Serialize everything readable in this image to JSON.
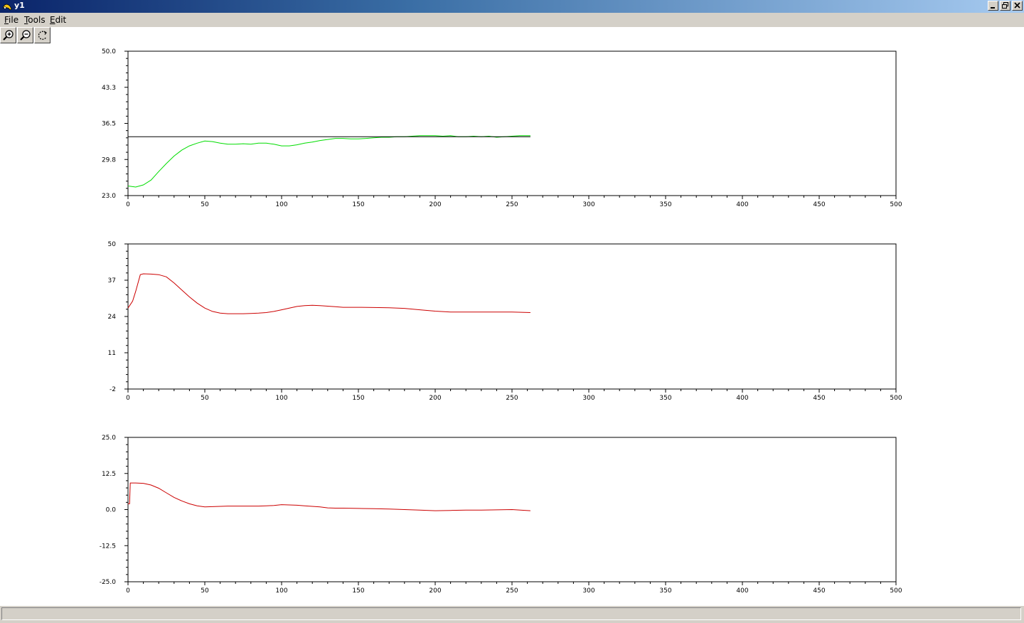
{
  "window": {
    "title": "y1"
  },
  "menu": {
    "items": [
      {
        "label": "File",
        "accel": "F",
        "rest": "ile"
      },
      {
        "label": "Tools",
        "accel": "T",
        "rest": "ools"
      },
      {
        "label": "Edit",
        "accel": "E",
        "rest": "dit"
      }
    ]
  },
  "toolbar": {
    "icons": [
      "zoom-in-icon",
      "zoom-out-icon",
      "rotate-icon"
    ]
  },
  "status": {
    "text": ""
  },
  "chart_data": [
    {
      "type": "line",
      "xlim": [
        0,
        500
      ],
      "ylim": [
        23.0,
        50.0
      ],
      "xticks": [
        "0",
        "50",
        "100",
        "150",
        "200",
        "250",
        "300",
        "350",
        "400",
        "450",
        "500"
      ],
      "yticks": [
        "23.0",
        "29.8",
        "36.5",
        "43.3",
        "50.0"
      ],
      "series": [
        {
          "color": "#00dd00",
          "x": [
            0,
            5,
            10,
            15,
            20,
            25,
            30,
            35,
            40,
            45,
            50,
            55,
            60,
            65,
            70,
            75,
            80,
            85,
            90,
            95,
            100,
            105,
            110,
            115,
            120,
            125,
            130,
            135,
            140,
            145,
            150,
            155,
            160,
            165,
            170,
            175,
            180,
            185,
            190,
            195,
            200,
            205,
            210,
            215,
            220,
            225,
            230,
            235,
            240,
            245,
            250,
            255,
            260,
            262
          ],
          "y": [
            24.8,
            24.6,
            25.0,
            25.9,
            27.5,
            29.0,
            30.4,
            31.5,
            32.3,
            32.8,
            33.2,
            33.1,
            32.8,
            32.6,
            32.6,
            32.7,
            32.6,
            32.8,
            32.8,
            32.6,
            32.3,
            32.3,
            32.5,
            32.8,
            33.0,
            33.3,
            33.5,
            33.7,
            33.7,
            33.6,
            33.6,
            33.7,
            33.8,
            33.9,
            33.9,
            34.0,
            34.0,
            34.1,
            34.2,
            34.2,
            34.2,
            34.1,
            34.2,
            34.0,
            34.0,
            34.1,
            34.0,
            34.1,
            33.9,
            34.0,
            34.1,
            34.2,
            34.2,
            34.2
          ]
        },
        {
          "color": "#000000",
          "x": [
            0,
            262
          ],
          "y": [
            34.0,
            34.0
          ]
        }
      ]
    },
    {
      "type": "line",
      "xlim": [
        0,
        500
      ],
      "ylim": [
        -2,
        50
      ],
      "xticks": [
        "0",
        "50",
        "100",
        "150",
        "200",
        "250",
        "300",
        "350",
        "400",
        "450",
        "500"
      ],
      "yticks": [
        "-2",
        "11",
        "24",
        "37",
        "50"
      ],
      "series": [
        {
          "color": "#cc0000",
          "x": [
            0,
            3,
            5,
            8,
            10,
            15,
            20,
            25,
            30,
            35,
            40,
            45,
            50,
            55,
            60,
            65,
            70,
            75,
            80,
            85,
            90,
            95,
            100,
            105,
            110,
            115,
            120,
            125,
            130,
            135,
            140,
            150,
            160,
            170,
            180,
            190,
            200,
            210,
            220,
            230,
            240,
            250,
            262
          ],
          "y": [
            27.0,
            29.5,
            33.0,
            39.0,
            39.3,
            39.2,
            39.0,
            38.2,
            36.0,
            33.5,
            31.0,
            28.8,
            27.0,
            25.8,
            25.2,
            25.0,
            25.0,
            25.0,
            25.1,
            25.2,
            25.4,
            25.8,
            26.4,
            27.0,
            27.6,
            27.9,
            28.0,
            27.9,
            27.7,
            27.5,
            27.3,
            27.3,
            27.2,
            27.1,
            26.9,
            26.4,
            25.9,
            25.6,
            25.6,
            25.6,
            25.6,
            25.6,
            25.4
          ]
        }
      ]
    },
    {
      "type": "line",
      "xlim": [
        0,
        500
      ],
      "ylim": [
        -25.0,
        25.0
      ],
      "xticks": [
        "0",
        "50",
        "100",
        "150",
        "200",
        "250",
        "300",
        "350",
        "400",
        "450",
        "500"
      ],
      "yticks": [
        "-25.0",
        "-12.5",
        "0.0",
        "12.5",
        "25.0"
      ],
      "series": [
        {
          "color": "#cc0000",
          "x": [
            0,
            1,
            1.5,
            5,
            10,
            15,
            20,
            25,
            30,
            35,
            40,
            45,
            50,
            55,
            60,
            65,
            70,
            75,
            80,
            85,
            90,
            95,
            100,
            105,
            110,
            115,
            120,
            125,
            130,
            135,
            140,
            150,
            160,
            170,
            180,
            190,
            200,
            210,
            220,
            230,
            240,
            250,
            262
          ],
          "y": [
            2.0,
            2.0,
            9.2,
            9.2,
            9.1,
            8.5,
            7.4,
            5.8,
            4.2,
            3.0,
            2.0,
            1.3,
            0.9,
            1.0,
            1.1,
            1.2,
            1.2,
            1.2,
            1.2,
            1.2,
            1.3,
            1.4,
            1.7,
            1.6,
            1.5,
            1.3,
            1.1,
            0.9,
            0.6,
            0.5,
            0.5,
            0.4,
            0.3,
            0.2,
            0.0,
            -0.2,
            -0.4,
            -0.3,
            -0.2,
            -0.2,
            -0.1,
            0.0,
            -0.4
          ]
        }
      ]
    }
  ]
}
